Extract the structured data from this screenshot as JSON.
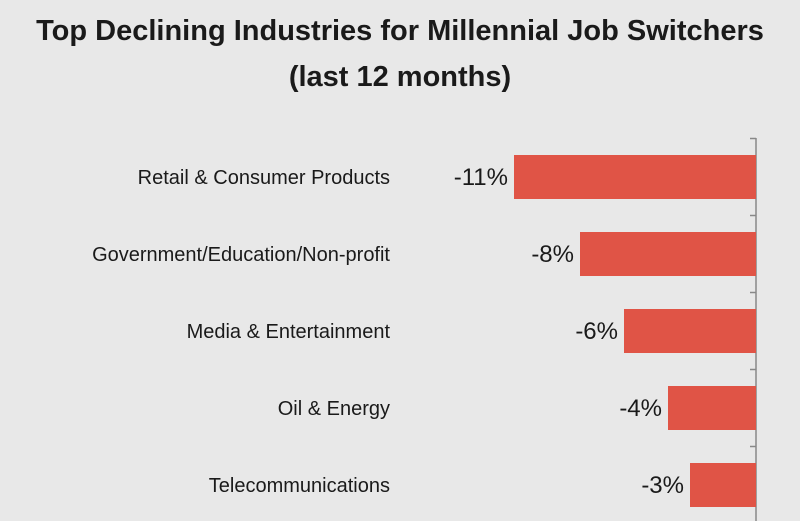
{
  "chart_data": {
    "type": "bar",
    "orientation": "horizontal",
    "title": "Top Declining Industries for Millennial Job Switchers",
    "subtitle": "(last 12 months)",
    "categories": [
      "Retail & Consumer Products",
      "Government/Education/Non-profit",
      "Media & Entertainment",
      "Oil & Energy",
      "Telecommunications"
    ],
    "values": [
      -11,
      -8,
      -6,
      -4,
      -3
    ],
    "value_labels": [
      "-11%",
      "-8%",
      "-6%",
      "-4%",
      "-3%"
    ],
    "unit": "%",
    "bar_color": "#e05446",
    "background": "#e8e8e8",
    "grid": false,
    "legend": "none"
  }
}
